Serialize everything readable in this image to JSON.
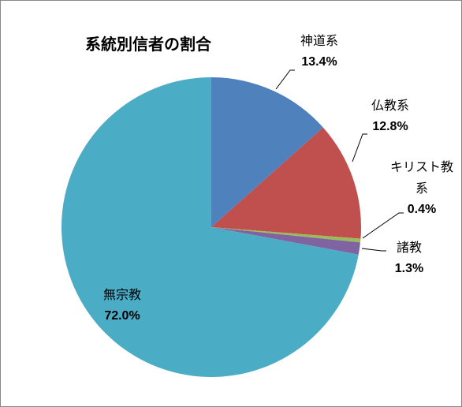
{
  "chart_data": {
    "type": "pie",
    "title": "系統別信者の割合",
    "categories": [
      "神道系",
      "仏教系",
      "キリスト教系",
      "諸教",
      "無宗教"
    ],
    "values": [
      13.4,
      12.8,
      0.4,
      1.3,
      72.0
    ],
    "value_labels": [
      "13.4%",
      "12.8%",
      "0.4%",
      "1.3%",
      "72.0%"
    ],
    "colors": [
      "#4f81bd",
      "#c0504d",
      "#9bbb59",
      "#8064a2",
      "#4bacc6"
    ]
  }
}
